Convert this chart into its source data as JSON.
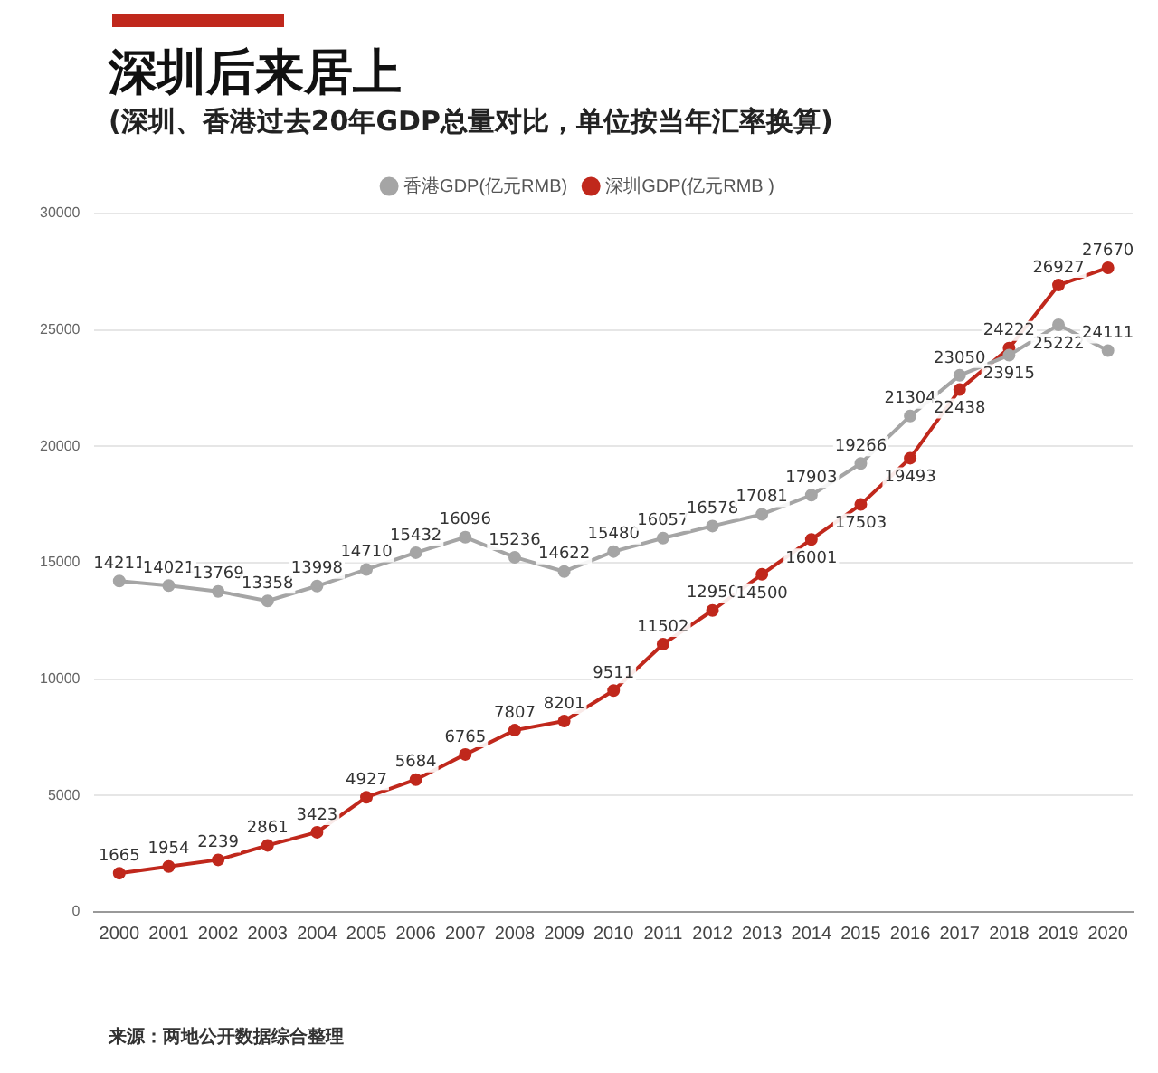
{
  "chart_data": {
    "type": "line",
    "title": "深圳后来居上",
    "subtitle": "(深圳、香港过去20年GDP总量对比，单位按当年汇率换算)",
    "categories": [
      "2000",
      "2001",
      "2002",
      "2003",
      "2004",
      "2005",
      "2006",
      "2007",
      "2008",
      "2009",
      "2010",
      "2011",
      "2012",
      "2013",
      "2014",
      "2015",
      "2016",
      "2017",
      "2018",
      "2019",
      "2020"
    ],
    "series": [
      {
        "name": "香港GDP(亿元RMB)",
        "color": "#a5a5a5",
        "values": [
          14211,
          14021,
          13769,
          13358,
          13998,
          14710,
          15432,
          16096,
          15236,
          14622,
          15480,
          16057,
          16578,
          17081,
          17903,
          19266,
          21304,
          23050,
          23915,
          25222,
          24111
        ]
      },
      {
        "name": "深圳GDP(亿元RMB )",
        "color": "#c0281c",
        "values": [
          1665,
          1954,
          2239,
          2861,
          3423,
          4927,
          5684,
          6765,
          7807,
          8201,
          9511,
          11502,
          12950,
          14500,
          16001,
          17503,
          19493,
          22438,
          24222,
          26927,
          27670
        ]
      }
    ],
    "ylim": [
      0,
      30000
    ],
    "yticks": [
      0,
      5000,
      10000,
      15000,
      20000,
      25000,
      30000
    ],
    "grid": "y",
    "legend": "top",
    "marker": "circle",
    "data_labels": true,
    "annotations": [
      "来源：两地公开数据综合整理"
    ]
  }
}
